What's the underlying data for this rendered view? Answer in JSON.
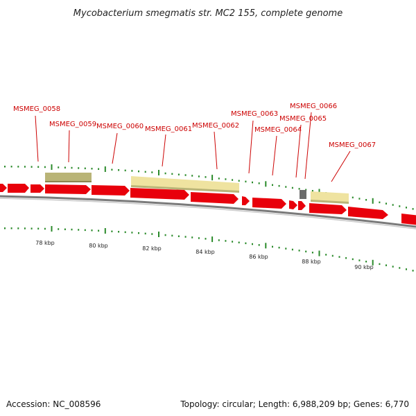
{
  "title": "Mycobacterium smegmatis str. MC2 155, complete genome",
  "footer": {
    "accession": "Accession: NC_008596",
    "summary": "Topology: circular; Length: 6,988,209 bp; Genes: 6,770"
  },
  "axis_labels": [
    "78 kbp",
    "80 kbp",
    "82 kbp",
    "84 kbp",
    "86 kbp",
    "88 kbp",
    "90 kbp"
  ],
  "gene_labels": [
    "MSMEG_0058",
    "MSMEG_0059",
    "MSMEG_0060",
    "MSMEG_0061",
    "MSMEG_0062",
    "MSMEG_0063",
    "MSMEG_0064",
    "MSMEG_0065",
    "MSMEG_0066",
    "MSMEG_0067"
  ],
  "colors": {
    "cds": "#e8000b",
    "cds_dark": "#b00000",
    "feature_light": "#efe3a0",
    "feature_olive": "#b9b477",
    "feature_gray": "#6b6b6b",
    "backbone": "#7a7a7a",
    "tick": "#2a8a2a",
    "label": "#cc0000"
  }
}
